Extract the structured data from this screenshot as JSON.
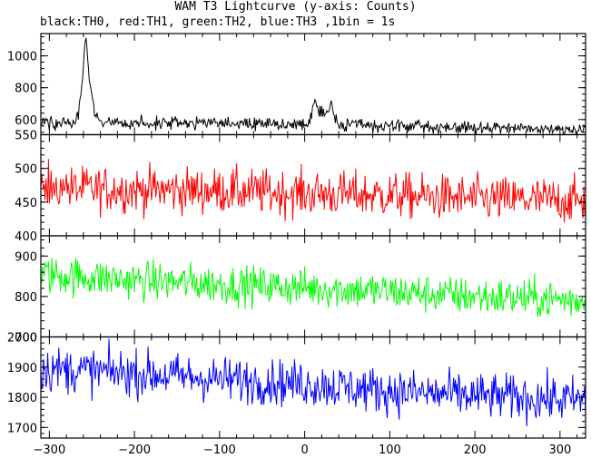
{
  "chart_data": {
    "type": "line",
    "title": "WAM T3 Lightcurve (y-axis: Counts)",
    "subtitle": "black:TH0, red:TH1, green:TH2, blue:TH3 ,1bin = 1s",
    "xlim": [
      -310,
      330
    ],
    "xticks": [
      -300,
      -200,
      -100,
      0,
      100,
      200,
      300
    ],
    "xtick_labels": [
      "−300",
      "−200",
      "−100",
      "0",
      "100",
      "200",
      "300"
    ],
    "grid": false,
    "panels": [
      {
        "series": "TH0",
        "color": "#000000",
        "ylim": [
          505,
          1140
        ],
        "yticks": [
          600,
          800,
          1000
        ],
        "ytick_labels": [
          "600",
          "800",
          "1000"
        ],
        "baseline": [
          [
            -310,
            580
          ],
          [
            -100,
            575
          ],
          [
            0,
            568
          ],
          [
            100,
            560
          ],
          [
            200,
            548
          ],
          [
            330,
            540
          ]
        ],
        "bursts": [
          {
            "x": [
              -269,
              -266,
              -263,
              -261,
              -259,
              -257,
              -255,
              -253,
              -250,
              -247,
              -243,
              -238
            ],
            "y": [
              590,
              640,
              740,
              880,
              1030,
              1110,
              1020,
              860,
              720,
              640,
              600,
              585
            ]
          },
          {
            "x": [
              5,
              9,
              12,
              15,
              18,
              21,
              24,
              27,
              30,
              33,
              36,
              40
            ],
            "y": [
              575,
              650,
              720,
              680,
              660,
              650,
              640,
              655,
              690,
              640,
              595,
              570
            ]
          }
        ],
        "noise": 20
      },
      {
        "series": "TH1",
        "color": "#ff0000",
        "ylim": [
          400,
          550
        ],
        "yticks": [
          400,
          450,
          500,
          550
        ],
        "ytick_labels": [
          "400",
          "450",
          "500",
          "550"
        ],
        "baseline": [
          [
            -310,
            470
          ],
          [
            -100,
            467
          ],
          [
            0,
            463
          ],
          [
            100,
            460
          ],
          [
            200,
            455
          ],
          [
            330,
            452
          ]
        ],
        "bursts": [],
        "noise": 17
      },
      {
        "series": "TH2",
        "color": "#00ff00",
        "ylim": [
          700,
          950
        ],
        "yticks": [
          700,
          800,
          900
        ],
        "ytick_labels": [
          "700",
          "800",
          "900"
        ],
        "baseline": [
          [
            -310,
            855
          ],
          [
            -200,
            840
          ],
          [
            -100,
            830
          ],
          [
            0,
            822
          ],
          [
            100,
            812
          ],
          [
            200,
            800
          ],
          [
            330,
            790
          ]
        ],
        "bursts": [],
        "noise": 24
      },
      {
        "series": "TH3",
        "color": "#0000ff",
        "ylim": [
          1665,
          2000
        ],
        "yticks": [
          1700,
          1800,
          1900,
          2000
        ],
        "ytick_labels": [
          "1700",
          "1800",
          "1900",
          "2000"
        ],
        "baseline": [
          [
            -310,
            1895
          ],
          [
            -200,
            1880
          ],
          [
            -100,
            1860
          ],
          [
            0,
            1845
          ],
          [
            100,
            1820
          ],
          [
            200,
            1805
          ],
          [
            330,
            1790
          ]
        ],
        "bursts": [],
        "noise": 38
      }
    ]
  }
}
